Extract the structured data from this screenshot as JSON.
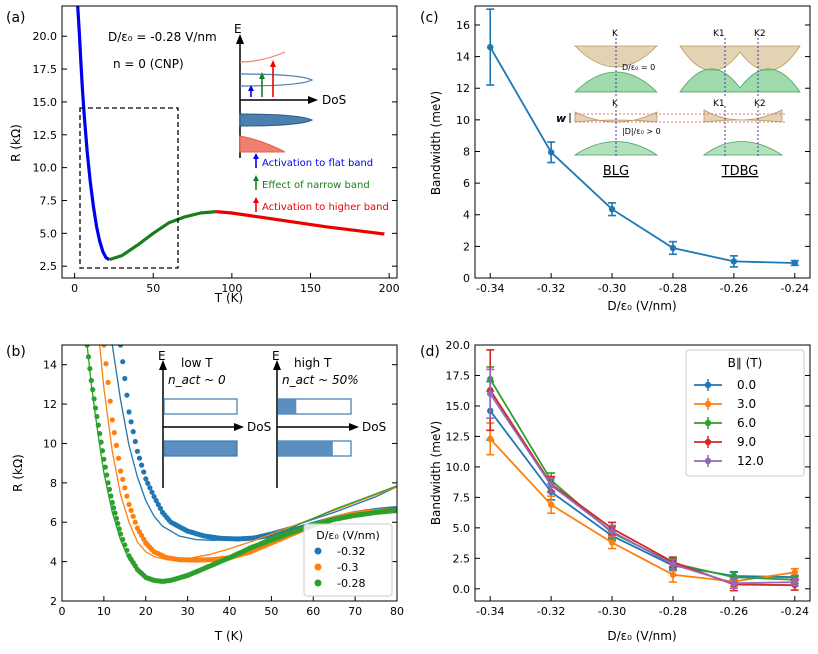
{
  "chart_data": [
    {
      "panel": "(a)",
      "type": "line",
      "xlabel": "T (K)",
      "ylabel": "R (kΩ)",
      "xlim": [
        -8,
        205
      ],
      "ylim": [
        1.6,
        22.3
      ],
      "xticks": [
        "0",
        "50",
        "100",
        "150",
        "200"
      ],
      "yticks": [
        "2.5",
        "5.0",
        "7.5",
        "10.0",
        "12.5",
        "15.0",
        "17.5",
        "20.0"
      ],
      "annotations": [
        "D/ε₀ = -0.28 V/nm",
        "n = 0 (CNP)"
      ],
      "series": [
        {
          "name": "Activation to flat band",
          "color": "#0000ee",
          "x": [
            2,
            3,
            4,
            5,
            6,
            8,
            10,
            12,
            14,
            16,
            18,
            20,
            22
          ],
          "y": [
            22.3,
            20.3,
            18.0,
            16.0,
            14.2,
            11.2,
            8.9,
            7.0,
            5.5,
            4.4,
            3.6,
            3.15,
            3.0
          ]
        },
        {
          "name": "Effect of narrow band",
          "color": "#1a7f1a",
          "x": [
            22,
            30,
            40,
            50,
            60,
            70,
            80,
            90
          ],
          "y": [
            3.0,
            3.3,
            4.1,
            5.0,
            5.8,
            6.25,
            6.55,
            6.65
          ]
        },
        {
          "name": "Activation to higher band",
          "color": "#ee0000",
          "x": [
            90,
            100,
            120,
            140,
            160,
            180,
            197
          ],
          "y": [
            6.65,
            6.55,
            6.2,
            5.85,
            5.5,
            5.2,
            4.95
          ]
        }
      ],
      "inset": {
        "axis_labels": [
          "E",
          "DoS"
        ],
        "legend": [
          "Activation to flat band",
          "Effect of narrow band",
          "Activation to higher band"
        ]
      }
    },
    {
      "panel": "(b)",
      "type": "scatter",
      "xlabel": "T (K)",
      "ylabel": "R (kΩ)",
      "xlim": [
        0,
        80
      ],
      "ylim": [
        2,
        15
      ],
      "xticks": [
        "0",
        "10",
        "20",
        "30",
        "40",
        "50",
        "60",
        "70",
        "80"
      ],
      "yticks": [
        "2",
        "4",
        "6",
        "8",
        "10",
        "12",
        "14"
      ],
      "legend_title": "D/ε₀ (V/nm)",
      "legend_placement": "bottom-right",
      "series": [
        {
          "name": "-0.32",
          "color": "#1f77b4",
          "x": [
            14,
            16,
            18,
            20,
            22,
            24,
            26,
            30,
            34,
            38,
            42,
            46,
            50,
            55,
            60,
            65,
            70,
            75,
            80
          ],
          "y": [
            15,
            11.6,
            9.6,
            8.2,
            7.3,
            6.5,
            6.0,
            5.55,
            5.3,
            5.18,
            5.15,
            5.2,
            5.35,
            5.6,
            5.9,
            6.2,
            6.45,
            6.6,
            6.7
          ],
          "fit_x": [
            12,
            14,
            16,
            18,
            20,
            22,
            24,
            28,
            32,
            36,
            40,
            45,
            50,
            55,
            60,
            65,
            70,
            75,
            80
          ],
          "fit_y": [
            15,
            12.2,
            9.9,
            8.3,
            7.1,
            6.3,
            5.8,
            5.3,
            5.12,
            5.08,
            5.12,
            5.25,
            5.5,
            5.8,
            6.15,
            6.5,
            6.9,
            7.3,
            7.8
          ]
        },
        {
          "name": "-0.3",
          "color": "#ff7f0e",
          "x": [
            10,
            12,
            14,
            16,
            18,
            20,
            22,
            25,
            28,
            32,
            36,
            40,
            45,
            50,
            55,
            60,
            65,
            70,
            75,
            80
          ],
          "y": [
            15,
            11.2,
            8.6,
            6.9,
            5.7,
            4.95,
            4.5,
            4.2,
            4.1,
            4.08,
            4.1,
            4.2,
            4.5,
            4.95,
            5.4,
            5.85,
            6.2,
            6.45,
            6.55,
            6.6
          ],
          "fit_x": [
            9,
            10,
            12,
            14,
            16,
            18,
            20,
            22,
            25,
            30,
            35,
            40,
            45,
            50,
            55,
            60,
            65,
            70,
            75,
            80
          ],
          "fit_y": [
            15,
            12.8,
            9.6,
            7.4,
            6.0,
            5.0,
            4.5,
            4.25,
            4.1,
            4.15,
            4.35,
            4.65,
            5.0,
            5.4,
            5.8,
            6.2,
            6.6,
            7.0,
            7.4,
            7.8
          ]
        },
        {
          "name": "-0.28",
          "color": "#2ca02c",
          "x": [
            6,
            7,
            8,
            9,
            10,
            11,
            12,
            13,
            14,
            16,
            18,
            20,
            22,
            24,
            26,
            30,
            35,
            40,
            45,
            50,
            55,
            60,
            65,
            70,
            75,
            80
          ],
          "y": [
            15,
            13.2,
            11.8,
            10.5,
            9.2,
            8.0,
            7.0,
            6.2,
            5.4,
            4.3,
            3.6,
            3.2,
            3.05,
            3.0,
            3.05,
            3.3,
            3.75,
            4.2,
            4.7,
            5.1,
            5.5,
            5.85,
            6.15,
            6.35,
            6.5,
            6.6
          ],
          "fit_x": [
            6,
            7,
            8,
            9,
            10,
            12,
            14,
            16,
            18,
            20,
            22,
            24,
            27,
            30,
            35,
            40,
            45,
            50,
            55,
            60,
            65,
            70,
            75,
            80
          ],
          "fit_y": [
            15,
            13.0,
            11.4,
            9.9,
            8.5,
            6.5,
            5.1,
            4.1,
            3.5,
            3.15,
            3.02,
            3.0,
            3.05,
            3.25,
            3.7,
            4.2,
            4.75,
            5.25,
            5.75,
            6.2,
            6.65,
            7.05,
            7.45,
            7.85
          ]
        }
      ],
      "inset": {
        "low_T": {
          "title": "low T",
          "subtitle": "n_act ~ 0",
          "axes": [
            "E",
            "DoS"
          ]
        },
        "high_T": {
          "title": "high T",
          "subtitle": "n_act ~ 50%",
          "axes": [
            "E",
            "DoS"
          ]
        },
        "fill_fraction_high_T": 0.5
      }
    },
    {
      "panel": "(c)",
      "type": "line",
      "xlabel": "D/ε₀ (V/nm)",
      "ylabel": "Bandwidth (meV)",
      "xlim": [
        -0.345,
        -0.235
      ],
      "ylim": [
        0,
        17.2
      ],
      "xticks": [
        "-0.34",
        "-0.32",
        "-0.30",
        "-0.28",
        "-0.26",
        "-0.24"
      ],
      "yticks": [
        "0",
        "2",
        "4",
        "6",
        "8",
        "10",
        "12",
        "14",
        "16"
      ],
      "x": [
        -0.34,
        -0.32,
        -0.3,
        -0.28,
        -0.26,
        -0.24
      ],
      "values": [
        14.6,
        7.95,
        4.35,
        1.9,
        1.05,
        0.95
      ],
      "errors": [
        2.4,
        0.65,
        0.4,
        0.4,
        0.35,
        0.15
      ],
      "color": "#1f77b4",
      "inset": {
        "band_labels": [
          "K",
          "K1",
          "K2",
          "K",
          "K1",
          "K2"
        ],
        "conditions": [
          "D/ε₀ = 0",
          "|D|/ε₀ > 0"
        ],
        "w_label": "w",
        "systems": [
          "BLG",
          "TDBG"
        ]
      }
    },
    {
      "panel": "(d)",
      "type": "line",
      "xlabel": "D/ε₀ (V/nm)",
      "ylabel": "Bandwidth (meV)",
      "xlim": [
        -0.345,
        -0.235
      ],
      "ylim": [
        -1,
        20
      ],
      "xticks": [
        "-0.34",
        "-0.32",
        "-0.30",
        "-0.28",
        "-0.26",
        "-0.24"
      ],
      "yticks": [
        "0.0",
        "2.5",
        "5.0",
        "7.5",
        "10.0",
        "12.5",
        "15.0",
        "17.5",
        "20.0"
      ],
      "legend_title": "B∥ (T)",
      "legend_placement": "top-right",
      "x": [
        -0.34,
        -0.32,
        -0.3,
        -0.28,
        -0.26,
        -0.24
      ],
      "series": [
        {
          "name": "0.0",
          "color": "#1f77b4",
          "values": [
            14.6,
            7.95,
            4.35,
            1.9,
            1.05,
            0.95
          ],
          "errors": [
            2.4,
            0.65,
            0.4,
            0.4,
            0.35,
            0.15
          ]
        },
        {
          "name": "3.0",
          "color": "#ff7f0e",
          "values": [
            12.3,
            6.9,
            3.8,
            1.15,
            0.6,
            1.35
          ],
          "errors": [
            1.3,
            0.7,
            0.5,
            0.6,
            0.4,
            0.3
          ]
        },
        {
          "name": "6.0",
          "color": "#2ca02c",
          "values": [
            17.2,
            8.9,
            4.6,
            2.1,
            0.95,
            0.75
          ],
          "errors": [
            1.0,
            0.6,
            0.5,
            0.4,
            0.4,
            0.3
          ]
        },
        {
          "name": "9.0",
          "color": "#d62728",
          "values": [
            16.3,
            8.6,
            4.95,
            2.2,
            0.35,
            0.3
          ],
          "errors": [
            3.3,
            0.6,
            0.5,
            0.4,
            0.5,
            0.4
          ]
        },
        {
          "name": "12.0",
          "color": "#9467bd",
          "values": [
            16.0,
            8.5,
            4.7,
            2.0,
            0.45,
            0.55
          ],
          "errors": [
            2.0,
            0.6,
            0.5,
            0.4,
            0.4,
            0.3
          ]
        }
      ]
    }
  ]
}
